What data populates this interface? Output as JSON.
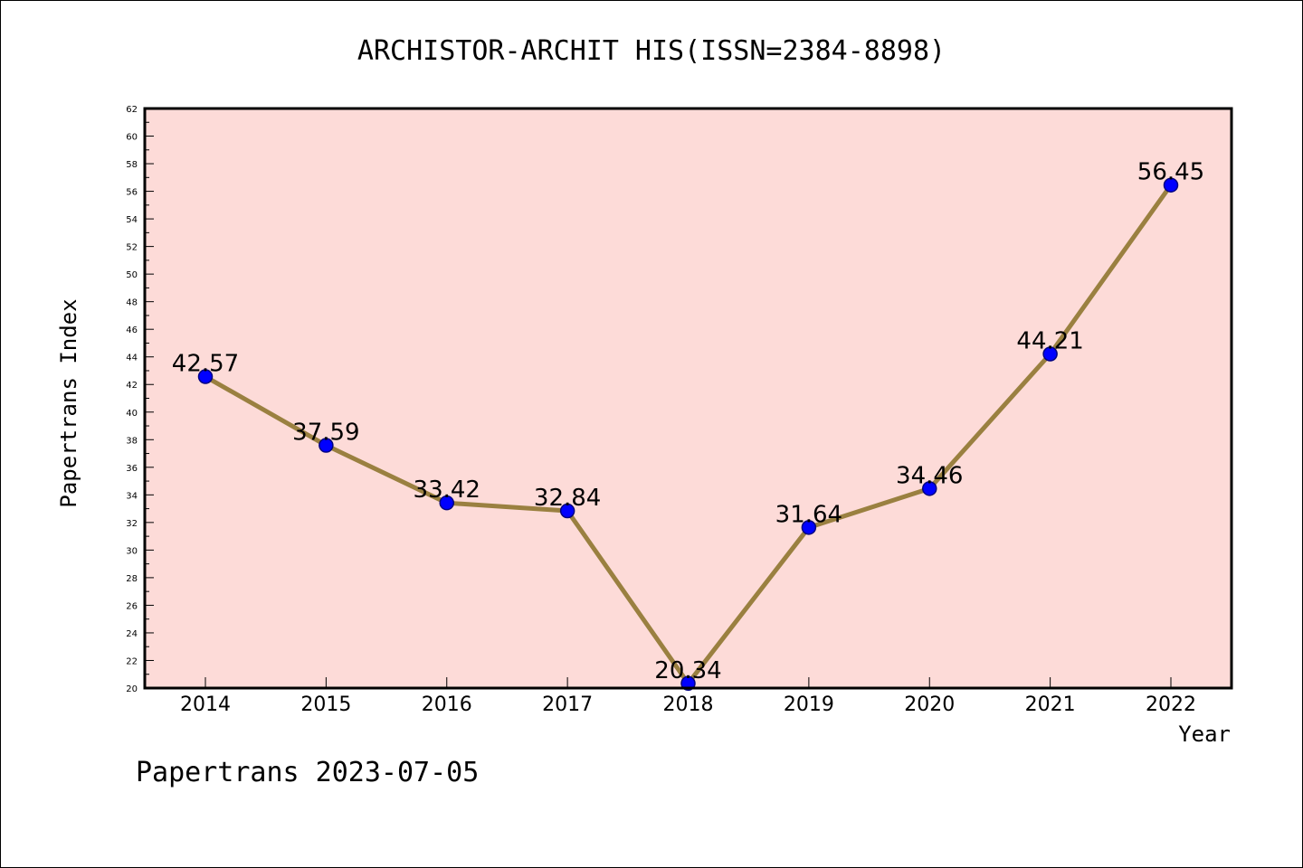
{
  "chart_data": {
    "type": "line",
    "title": "ARCHISTOR-ARCHIT HIS(ISSN=2384-8898)",
    "xlabel": "Year",
    "ylabel": "Papertrans Index",
    "categories": [
      "2014",
      "2015",
      "2016",
      "2017",
      "2018",
      "2019",
      "2020",
      "2021",
      "2022"
    ],
    "series": [
      {
        "values": [
          42.57,
          37.59,
          33.42,
          32.84,
          20.34,
          31.64,
          34.46,
          44.21,
          56.45
        ]
      }
    ],
    "data_labels": [
      "42.57",
      "37.59",
      "33.42",
      "32.84",
      "20.34",
      "31.64",
      "34.46",
      "44.21",
      "56.45"
    ],
    "ylim": [
      20,
      62
    ],
    "yticks": [
      "20",
      "22",
      "24",
      "26",
      "28",
      "30",
      "32",
      "34",
      "36",
      "38",
      "40",
      "42",
      "44",
      "46",
      "48",
      "50",
      "52",
      "54",
      "56",
      "58",
      "60",
      "62"
    ],
    "grid": false,
    "legend": "none"
  },
  "footer": {
    "note": "Papertrans 2023-07-05"
  },
  "colors": {
    "plot_background": "#fddbd8",
    "line": "#9a8040",
    "marker_fill": "#0000ff",
    "marker_stroke": "#000080",
    "axis": "#000000"
  }
}
